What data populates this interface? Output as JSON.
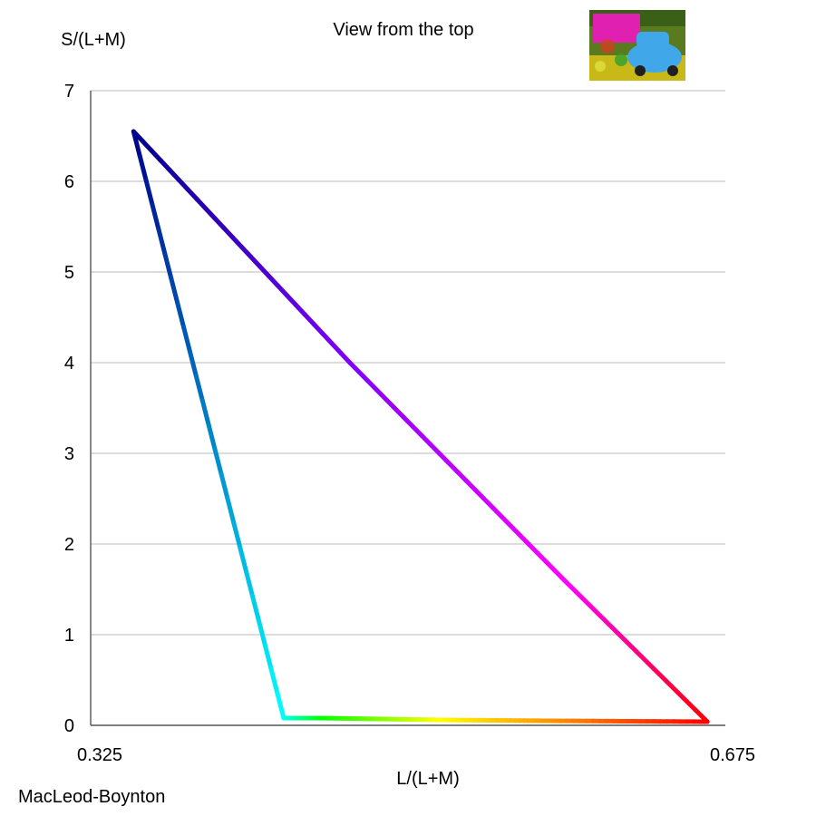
{
  "chart_data": {
    "type": "line",
    "title": "View from the top",
    "xlabel": "L/(L+M)",
    "ylabel": "S/(L+M)",
    "caption": "MacLeod-Boynton",
    "xlim": [
      0.325,
      0.675
    ],
    "ylim": [
      0,
      7
    ],
    "x_ticks": [
      "0.325",
      "0.675"
    ],
    "y_ticks": [
      "0",
      "1",
      "2",
      "3",
      "4",
      "5",
      "6",
      "7"
    ],
    "grid": true,
    "series": [
      {
        "points": [
          {
            "x": 0.349,
            "y": 6.55,
            "color": "#00008c"
          },
          {
            "x": 0.433,
            "y": 0.08,
            "color": "#00ffff"
          },
          {
            "x": 0.455,
            "y": 0.08,
            "color": "#00ff00"
          },
          {
            "x": 0.52,
            "y": 0.06,
            "color": "#ffff00"
          },
          {
            "x": 0.58,
            "y": 0.05,
            "color": "#ff9900"
          },
          {
            "x": 0.67,
            "y": 0.04,
            "color": "#ff0000"
          },
          {
            "x": 0.59,
            "y": 1.6,
            "color": "#ff00ff"
          },
          {
            "x": 0.47,
            "y": 4.0,
            "color": "#8000ff"
          },
          {
            "x": 0.349,
            "y": 6.55,
            "color": "#00008c"
          }
        ]
      }
    ],
    "thumbnail": {
      "icon": "thumbnail-photo-icon",
      "colors": {
        "sky": "#5a7a20",
        "banner": "#e020b0",
        "car": "#40a8e8",
        "ground": "#c8b818"
      }
    }
  }
}
